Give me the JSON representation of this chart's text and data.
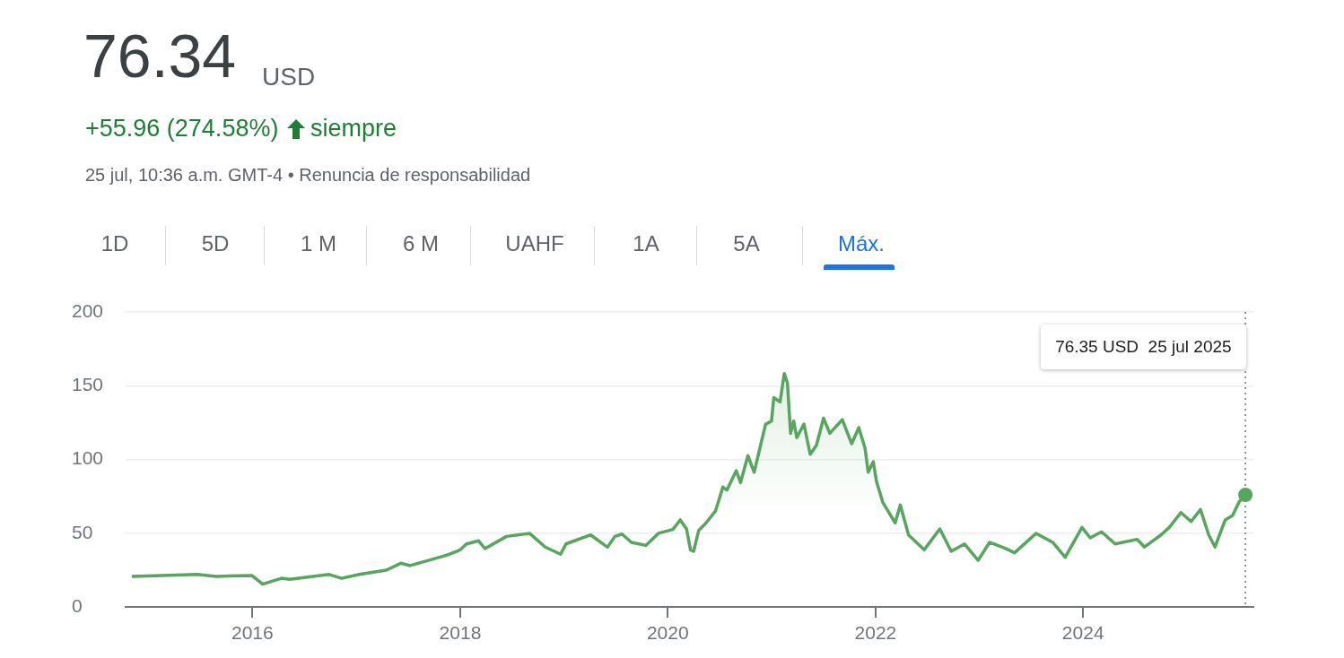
{
  "chart_data": {
    "type": "area",
    "title": "76.34",
    "subtitle": "+55.96 (274.58%)",
    "annotations": [
      "USD",
      "siempre",
      "25 jul, 10:36 a.m. GMT-4 • Renuncia de responsabilidad",
      "1D",
      "5D",
      "1 M",
      "6 M",
      "UAHF",
      "1A",
      "5A",
      "Máx.",
      "76.35 USD  25 jul 2025"
    ],
    "x": [
      "2014-11-03",
      "2015-02-17",
      "2015-06-21",
      "2015-08-26",
      "2015-12-30",
      "2016-02-06",
      "2016-04-12",
      "2016-05-11",
      "2016-09-27",
      "2016-11-10",
      "2017-01-11",
      "2017-04-16",
      "2017-06-06",
      "2017-07-09",
      "2017-11-14",
      "2018-01-01",
      "2018-01-23",
      "2018-03-07",
      "2018-03-29",
      "2018-06-13",
      "2018-09-02",
      "2018-10-27",
      "2018-12-20",
      "2019-01-08",
      "2019-04-05",
      "2019-06-03",
      "2019-06-29",
      "2019-07-24",
      "2019-08-26",
      "2019-10-16",
      "2019-11-29",
      "2020-01-19",
      "2020-02-14",
      "2020-03-07",
      "2020-03-21",
      "2020-04-01",
      "2020-04-19",
      "2020-05-15",
      "2020-06-17",
      "2020-07-13",
      "2020-07-27",
      "2020-08-29",
      "2020-09-13",
      "2020-10-09",
      "2020-10-31",
      "2020-12-10",
      "2020-12-31",
      "2021-01-08",
      "2021-01-30",
      "2021-02-14",
      "2021-02-25",
      "2021-03-08",
      "2021-03-19",
      "2021-03-30",
      "2021-04-24",
      "2021-05-16",
      "2021-06-07",
      "2021-07-02",
      "2021-07-24",
      "2021-09-06",
      "2021-10-09",
      "2021-11-03",
      "2021-11-25",
      "2021-12-06",
      "2021-12-24",
      "2022-01-04",
      "2022-01-26",
      "2022-03-11",
      "2022-03-29",
      "2022-04-27",
      "2022-06-21",
      "2022-08-15",
      "2022-09-24",
      "2022-11-10",
      "2022-12-28",
      "2023-02-06",
      "2023-04-02",
      "2023-05-05",
      "2023-07-20",
      "2023-09-16",
      "2023-10-30",
      "2023-12-28",
      "2024-01-26",
      "2024-03-06",
      "2024-04-23",
      "2024-07-09",
      "2024-08-04",
      "2024-10-01",
      "2024-10-30",
      "2024-12-10",
      "2025-01-15",
      "2025-02-17",
      "2025-03-18",
      "2025-04-09",
      "2025-05-15",
      "2025-06-10",
      "2025-07-02",
      "2025-07-25"
    ],
    "values": [
      20.7,
      21.3,
      22,
      20.7,
      21.3,
      15.4,
      19.4,
      18.7,
      22,
      19.4,
      22,
      24.9,
      29.6,
      28,
      35,
      38.7,
      42.7,
      44.8,
      39.5,
      47.8,
      49.9,
      40.6,
      35.7,
      42.7,
      48.8,
      40.5,
      47.8,
      49.4,
      43.8,
      41.7,
      49.9,
      52.5,
      59,
      52.9,
      38.7,
      37.7,
      51.9,
      57,
      65.1,
      81.3,
      79.2,
      92.4,
      84.3,
      102.5,
      91.3,
      123.8,
      126,
      142,
      139,
      158.2,
      152,
      117.7,
      126,
      114.7,
      124,
      103.5,
      109.6,
      128,
      117.7,
      127,
      110.6,
      121.6,
      107.6,
      91.4,
      98.4,
      85.3,
      71.1,
      57,
      69.1,
      48.8,
      38.7,
      52.9,
      37.7,
      42.7,
      31.6,
      43.8,
      39.7,
      36.7,
      49.9,
      43.8,
      33.6,
      53.9,
      46.8,
      50.9,
      42.7,
      45.8,
      40.6,
      48.8,
      53.9,
      64,
      57.9,
      66,
      48.8,
      40.6,
      59,
      62,
      71,
      76
    ],
    "color": "#56a65d",
    "xlim": [
      "2014-10-12",
      "2025-08-22"
    ],
    "ylim": [
      0,
      200
    ],
    "xticks": [
      "2016",
      "2018",
      "2020",
      "2022",
      "2024"
    ],
    "yticks": [
      0,
      50,
      100,
      150,
      200
    ],
    "grid": "y",
    "ref_lines": [
      {
        "axis": "x",
        "value": "2025-07-25",
        "line_style": "dotted",
        "color": "#757575"
      }
    ]
  }
}
